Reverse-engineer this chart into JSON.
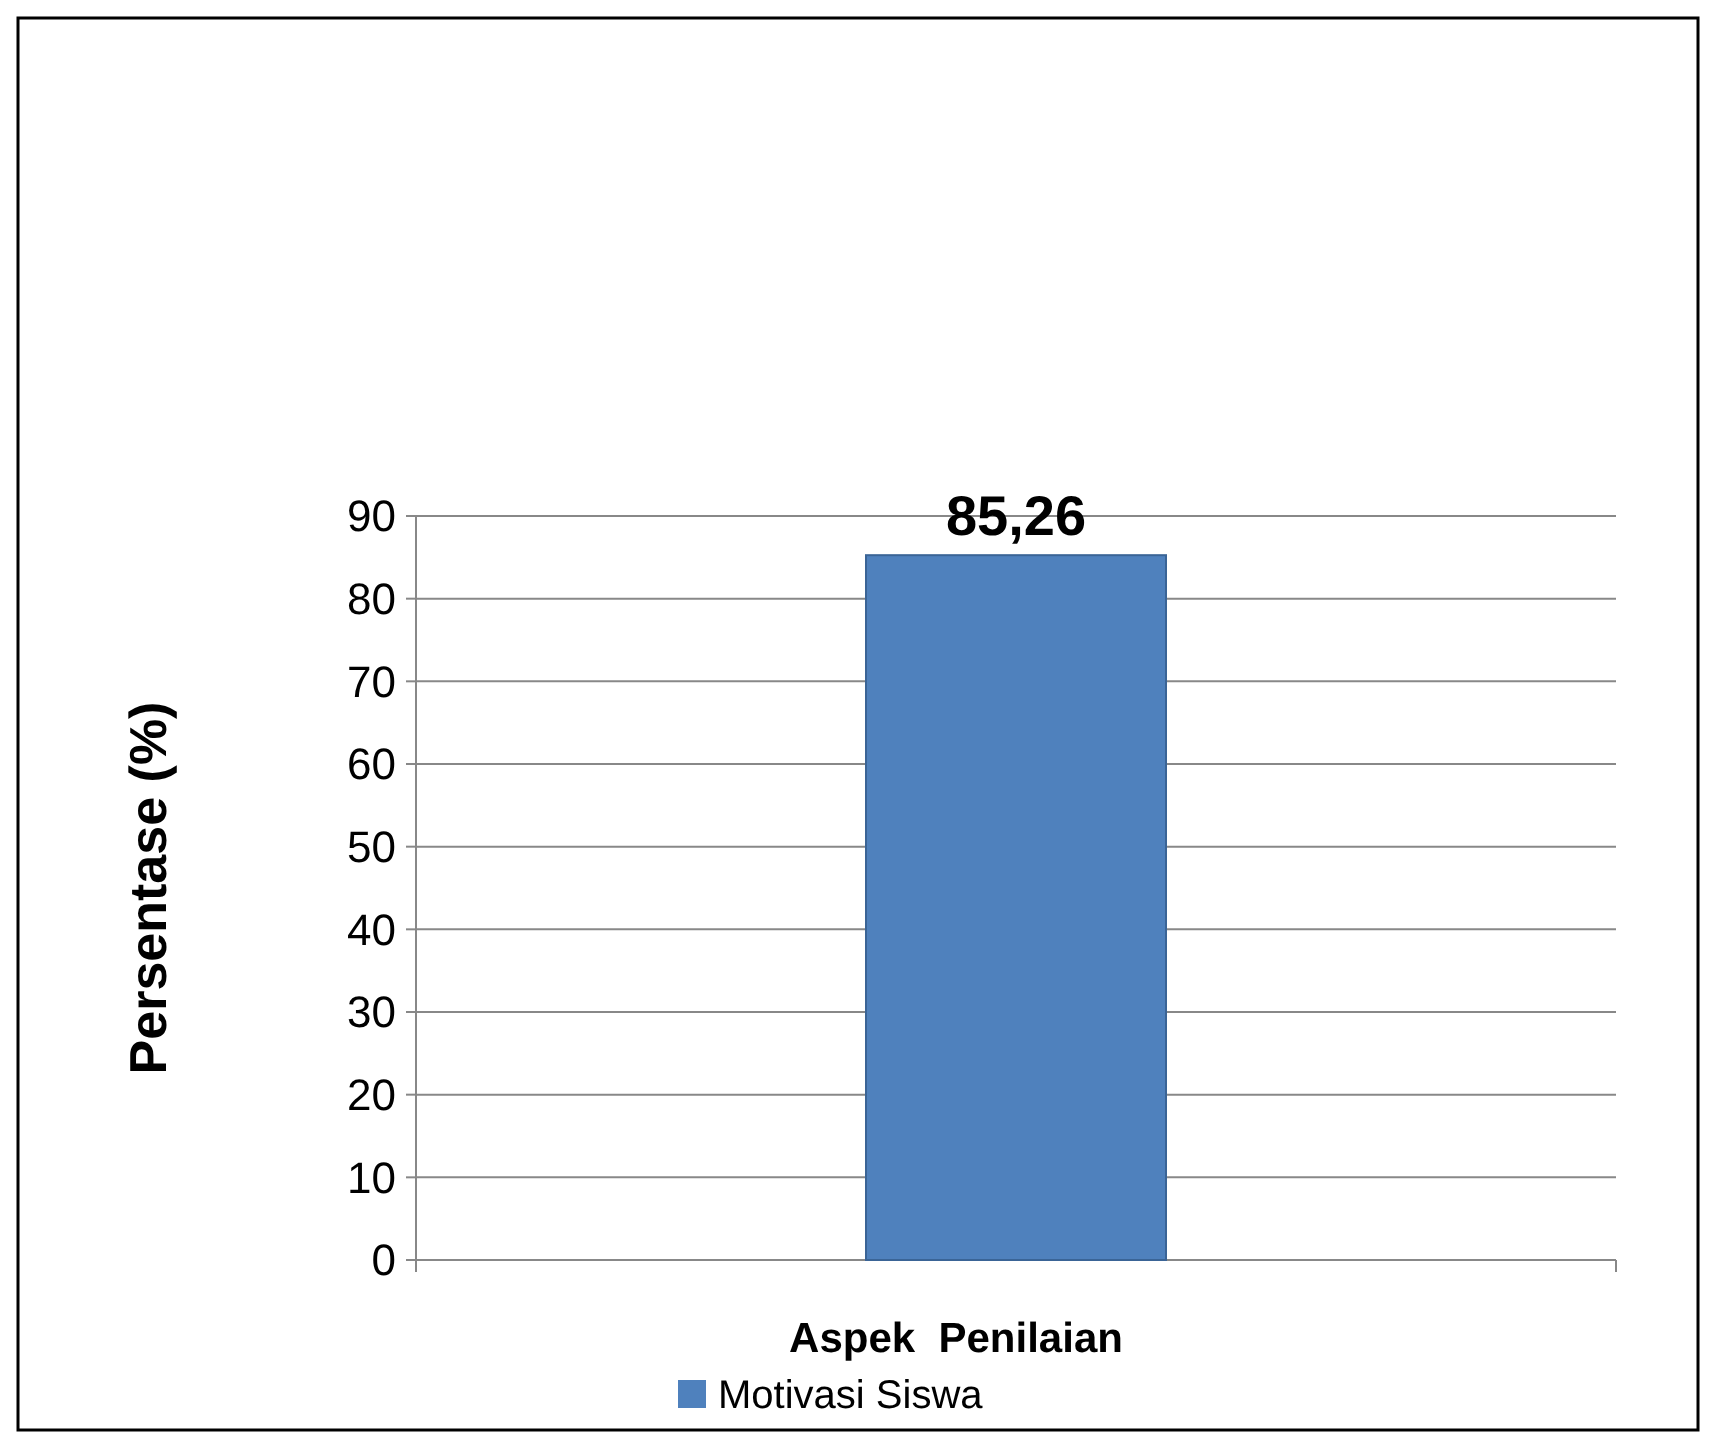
{
  "chart_data": {
    "type": "bar",
    "xlabel": "Aspek  Penilaian",
    "ylabel": "Persentase (%)",
    "categories": [
      null
    ],
    "series": [
      {
        "name": "Motivasi Siswa",
        "color": "#4f81bd",
        "values": [
          85.26
        ],
        "value_labels": [
          "85,26"
        ]
      }
    ],
    "ylim": [
      0,
      90
    ],
    "yticks": [
      0,
      10,
      20,
      30,
      40,
      50,
      60,
      70,
      80,
      90
    ],
    "grid": "y",
    "legend": "bottom"
  }
}
